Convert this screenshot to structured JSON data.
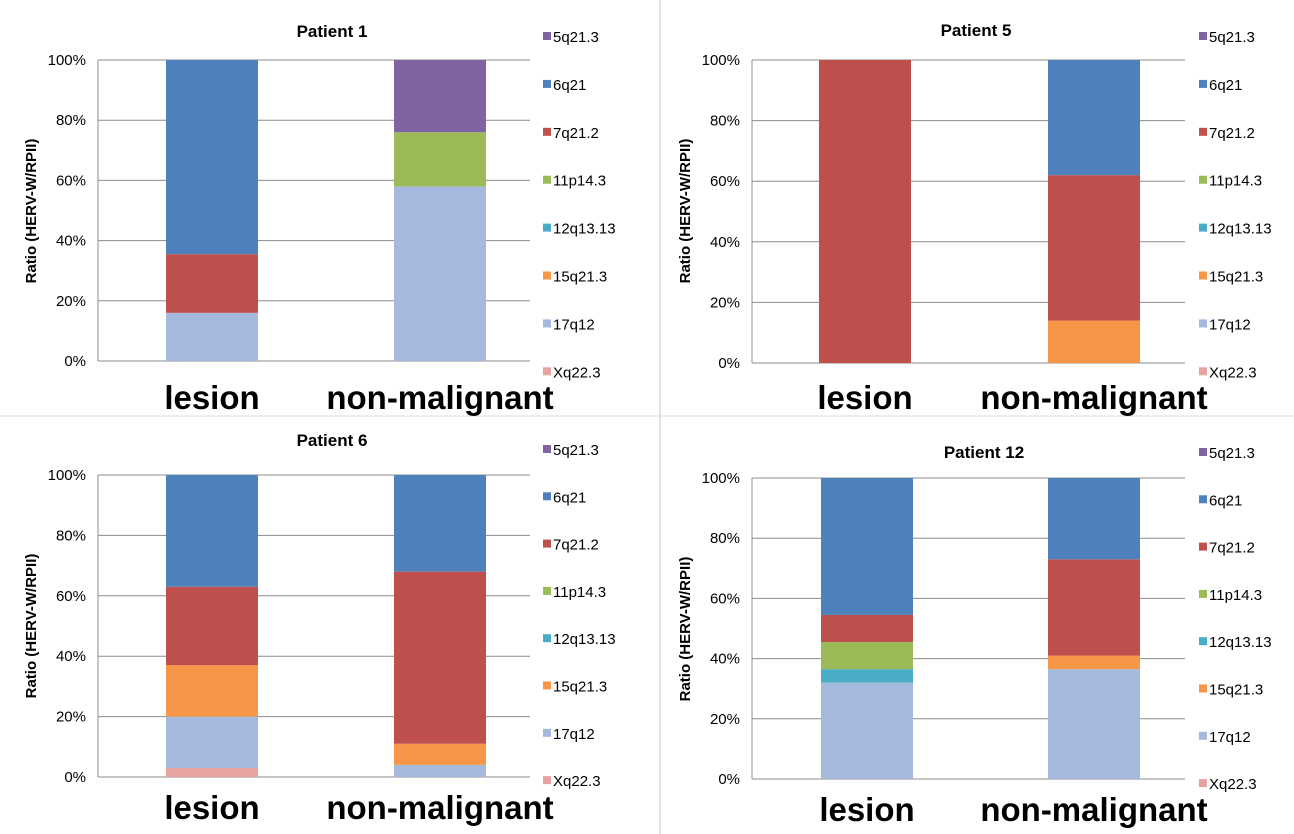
{
  "figure": {
    "series_colors": {
      "5q21.3": "#8064a2",
      "6q21": "#4f81bd",
      "7q21.2": "#c0504d",
      "11p14.3": "#9bbb59",
      "12q13.13": "#4bacc6",
      "15q21.3": "#f79646",
      "17q12": "#a4b9db",
      "Xq22.3": "#e5a3a2"
    },
    "legend_order": [
      "5q21.3",
      "6q21",
      "7q21.2",
      "11p14.3",
      "12q13.13",
      "15q21.3",
      "17q12",
      "Xq22.3"
    ]
  },
  "chart_data": [
    {
      "type": "bar",
      "stacked": true,
      "percent": true,
      "title": "Patient 1",
      "ylabel": "Ratio (HERV-W/RPII)",
      "ylim": [
        0,
        100
      ],
      "yticks": [
        "0%",
        "20%",
        "40%",
        "60%",
        "80%",
        "100%"
      ],
      "grid": true,
      "legend": "right",
      "categories": [
        "lesion",
        "non-malignant"
      ],
      "series": [
        {
          "name": "Xq22.3",
          "values": [
            0,
            0
          ]
        },
        {
          "name": "17q12",
          "values": [
            16,
            58
          ]
        },
        {
          "name": "15q21.3",
          "values": [
            0,
            0
          ]
        },
        {
          "name": "12q13.13",
          "values": [
            0,
            0
          ]
        },
        {
          "name": "11p14.3",
          "values": [
            0,
            18
          ]
        },
        {
          "name": "7q21.2",
          "values": [
            19.5,
            0
          ]
        },
        {
          "name": "6q21",
          "values": [
            64.5,
            0
          ]
        },
        {
          "name": "5q21.3",
          "values": [
            0,
            24
          ]
        }
      ]
    },
    {
      "type": "bar",
      "stacked": true,
      "percent": true,
      "title": "Patient 5",
      "ylabel": "Ratio (HERV-W/RPII)",
      "ylim": [
        0,
        100
      ],
      "yticks": [
        "0%",
        "20%",
        "40%",
        "60%",
        "80%",
        "100%"
      ],
      "grid": true,
      "legend": "right",
      "categories": [
        "lesion",
        "non-malignant"
      ],
      "series": [
        {
          "name": "Xq22.3",
          "values": [
            0,
            0
          ]
        },
        {
          "name": "17q12",
          "values": [
            0,
            0
          ]
        },
        {
          "name": "15q21.3",
          "values": [
            0,
            14
          ]
        },
        {
          "name": "12q13.13",
          "values": [
            0,
            0
          ]
        },
        {
          "name": "11p14.3",
          "values": [
            0,
            0
          ]
        },
        {
          "name": "7q21.2",
          "values": [
            100,
            48
          ]
        },
        {
          "name": "6q21",
          "values": [
            0,
            38
          ]
        },
        {
          "name": "5q21.3",
          "values": [
            0,
            0
          ]
        }
      ]
    },
    {
      "type": "bar",
      "stacked": true,
      "percent": true,
      "title": "Patient 6",
      "ylabel": "Ratio (HERV-W/RPII)",
      "ylim": [
        0,
        100
      ],
      "yticks": [
        "0%",
        "20%",
        "40%",
        "60%",
        "80%",
        "100%"
      ],
      "grid": true,
      "legend": "right",
      "categories": [
        "lesion",
        "non-malignant"
      ],
      "series": [
        {
          "name": "Xq22.3",
          "values": [
            3,
            0
          ]
        },
        {
          "name": "17q12",
          "values": [
            17,
            4
          ]
        },
        {
          "name": "15q21.3",
          "values": [
            17,
            7
          ]
        },
        {
          "name": "12q13.13",
          "values": [
            0,
            0
          ]
        },
        {
          "name": "11p14.3",
          "values": [
            0,
            0
          ]
        },
        {
          "name": "7q21.2",
          "values": [
            26,
            57
          ]
        },
        {
          "name": "6q21",
          "values": [
            37,
            32
          ]
        },
        {
          "name": "5q21.3",
          "values": [
            0,
            0
          ]
        }
      ]
    },
    {
      "type": "bar",
      "stacked": true,
      "percent": true,
      "title": "Patient 12",
      "ylabel": "Ratio (HERV-W/RPII)",
      "ylim": [
        0,
        100
      ],
      "yticks": [
        "0%",
        "20%",
        "40%",
        "60%",
        "80%",
        "100%"
      ],
      "grid": true,
      "legend": "right",
      "categories": [
        "lesion",
        "non-malignant"
      ],
      "series": [
        {
          "name": "Xq22.3",
          "values": [
            0,
            0
          ]
        },
        {
          "name": "17q12",
          "values": [
            32,
            36.5
          ]
        },
        {
          "name": "15q21.3",
          "values": [
            0,
            4.5
          ]
        },
        {
          "name": "12q13.13",
          "values": [
            4.5,
            0
          ]
        },
        {
          "name": "11p14.3",
          "values": [
            9,
            0
          ]
        },
        {
          "name": "7q21.2",
          "values": [
            9,
            32
          ]
        },
        {
          "name": "6q21",
          "values": [
            45.5,
            27
          ]
        },
        {
          "name": "5q21.3",
          "values": [
            0,
            0
          ]
        }
      ]
    }
  ]
}
